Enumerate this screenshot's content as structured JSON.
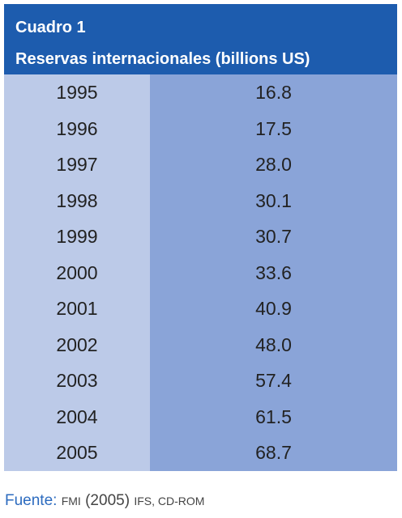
{
  "header": {
    "title": "Cuadro 1",
    "subtitle": "Reservas internacionales (billions US)"
  },
  "table": {
    "rows": [
      [
        "1995",
        "16.8"
      ],
      [
        "1996",
        "17.5"
      ],
      [
        "1997",
        "28.0"
      ],
      [
        "1998",
        "30.1"
      ],
      [
        "1999",
        "30.7"
      ],
      [
        "2000",
        "33.6"
      ],
      [
        "2001",
        "40.9"
      ],
      [
        "2002",
        "48.0"
      ],
      [
        "2003",
        "57.4"
      ],
      [
        "2004",
        "61.5"
      ],
      [
        "2005",
        "68.7"
      ]
    ]
  },
  "source": {
    "label": "Fuente:",
    "parts": [
      "FMI",
      "(2005)",
      "IFS, CD-ROM"
    ]
  }
}
